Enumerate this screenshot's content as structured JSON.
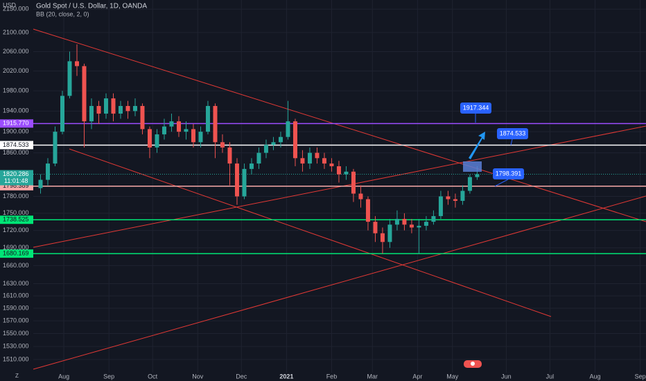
{
  "header": {
    "title": "Gold Spot / U.S. Dollar, 1D, OANDA",
    "indicator": "BB (20, close, 2, 0)",
    "currency": "USD",
    "corner": "Z"
  },
  "chart_data": {
    "type": "candlestick",
    "log_scale": true,
    "grid": true,
    "up_color": "#26a69a",
    "down_color": "#ef5350",
    "ylim": [
      1490,
      2170
    ],
    "yticks": [
      {
        "value": 2150,
        "label": "2150.000"
      },
      {
        "value": 2100,
        "label": "2100.000"
      },
      {
        "value": 2060,
        "label": "2060.000"
      },
      {
        "value": 2020,
        "label": "2020.000"
      },
      {
        "value": 1980,
        "label": "1980.000"
      },
      {
        "value": 1940,
        "label": "1940.000"
      },
      {
        "value": 1900,
        "label": "1900.000"
      },
      {
        "value": 1860,
        "label": "1860.000"
      },
      {
        "value": 1780,
        "label": "1780.000"
      },
      {
        "value": 1750,
        "label": "1750.000"
      },
      {
        "value": 1720,
        "label": "1720.000"
      },
      {
        "value": 1690,
        "label": "1690.000"
      },
      {
        "value": 1660,
        "label": "1660.000"
      },
      {
        "value": 1630,
        "label": "1630.000"
      },
      {
        "value": 1610,
        "label": "1610.000"
      },
      {
        "value": 1590,
        "label": "1590.000"
      },
      {
        "value": 1570,
        "label": "1570.000"
      },
      {
        "value": 1550,
        "label": "1550.000"
      },
      {
        "value": 1530,
        "label": "1530.000"
      },
      {
        "value": 1510,
        "label": "1510.000"
      }
    ],
    "xlim": [
      10,
      431
    ],
    "xticks": [
      {
        "value": 31,
        "label": "Aug"
      },
      {
        "value": 62,
        "label": "Sep"
      },
      {
        "value": 92,
        "label": "Oct"
      },
      {
        "value": 123,
        "label": "Nov"
      },
      {
        "value": 153,
        "label": "Dec"
      },
      {
        "value": 184,
        "label": "2021"
      },
      {
        "value": 215,
        "label": "Feb"
      },
      {
        "value": 243,
        "label": "Mar"
      },
      {
        "value": 274,
        "label": "Apr"
      },
      {
        "value": 298,
        "label": "May"
      },
      {
        "value": 335,
        "label": "Jun"
      },
      {
        "value": 365,
        "label": "Jul"
      },
      {
        "value": 396,
        "label": "Aug"
      },
      {
        "value": 427,
        "label": "Sep"
      }
    ],
    "x": [
      15,
      20,
      25,
      30,
      35,
      40,
      45,
      50,
      55,
      60,
      65,
      70,
      75,
      80,
      85,
      90,
      95,
      100,
      105,
      110,
      115,
      120,
      125,
      130,
      135,
      140,
      145,
      150,
      155,
      160,
      165,
      170,
      175,
      180,
      185,
      190,
      195,
      200,
      205,
      210,
      215,
      220,
      225,
      230,
      235,
      240,
      245,
      250,
      255,
      260,
      265,
      270,
      275,
      280,
      285,
      290,
      295,
      300,
      305,
      310,
      315
    ],
    "open": [
      1795,
      1810,
      1840,
      1900,
      1970,
      2040,
      2030,
      1920,
      1950,
      1935,
      1965,
      1935,
      1950,
      1940,
      1950,
      1905,
      1870,
      1895,
      1910,
      1920,
      1900,
      1905,
      1880,
      1900,
      1950,
      1880,
      1870,
      1840,
      1780,
      1830,
      1840,
      1860,
      1875,
      1880,
      1890,
      1920,
      1850,
      1840,
      1860,
      1850,
      1840,
      1835,
      1820,
      1825,
      1785,
      1775,
      1735,
      1715,
      1700,
      1730,
      1740,
      1730,
      1725,
      1728,
      1735,
      1745,
      1780,
      1775,
      1772,
      1790,
      1815
    ],
    "high": [
      1820,
      1850,
      1910,
      1980,
      2060,
      2075,
      2035,
      1965,
      1960,
      1975,
      1975,
      1960,
      1960,
      1965,
      1955,
      1910,
      1905,
      1925,
      1935,
      1930,
      1920,
      1915,
      1910,
      1960,
      1955,
      1895,
      1880,
      1850,
      1840,
      1850,
      1870,
      1885,
      1890,
      1900,
      1960,
      1925,
      1865,
      1870,
      1870,
      1860,
      1850,
      1845,
      1835,
      1830,
      1800,
      1780,
      1745,
      1725,
      1740,
      1755,
      1750,
      1740,
      1740,
      1745,
      1755,
      1790,
      1790,
      1785,
      1800,
      1820,
      1835
    ],
    "low": [
      1785,
      1800,
      1835,
      1895,
      1965,
      2010,
      1870,
      1905,
      1915,
      1925,
      1920,
      1925,
      1925,
      1930,
      1895,
      1850,
      1860,
      1885,
      1900,
      1890,
      1885,
      1870,
      1870,
      1895,
      1850,
      1860,
      1800,
      1765,
      1775,
      1820,
      1830,
      1850,
      1865,
      1870,
      1885,
      1835,
      1825,
      1830,
      1840,
      1830,
      1825,
      1805,
      1810,
      1770,
      1760,
      1720,
      1700,
      1680,
      1690,
      1720,
      1720,
      1715,
      1680,
      1720,
      1730,
      1740,
      1765,
      1760,
      1765,
      1785,
      1810
    ],
    "close": [
      1810,
      1840,
      1900,
      1970,
      2040,
      2030,
      1920,
      1950,
      1935,
      1965,
      1935,
      1950,
      1940,
      1950,
      1905,
      1870,
      1895,
      1910,
      1920,
      1900,
      1905,
      1880,
      1900,
      1950,
      1880,
      1870,
      1840,
      1780,
      1830,
      1840,
      1860,
      1875,
      1880,
      1890,
      1920,
      1850,
      1840,
      1860,
      1850,
      1840,
      1835,
      1820,
      1825,
      1785,
      1775,
      1735,
      1715,
      1700,
      1730,
      1740,
      1730,
      1725,
      1728,
      1735,
      1745,
      1780,
      1775,
      1772,
      1790,
      1815,
      1820.286
    ],
    "price_tags": [
      {
        "value": 1915.77,
        "label": "1915.770",
        "color": "#9c4dff",
        "text_color": "#ffffff"
      },
      {
        "value": 1874.533,
        "label": "1874.533",
        "color": "#ffffff",
        "text_color": "#131722"
      },
      {
        "value": 1798.389,
        "label": "1798.389",
        "color": "#f7a9a8",
        "text_color": "#131722"
      },
      {
        "value": 1738.525,
        "label": "1738.525",
        "color": "#00e676",
        "text_color": "#131722"
      },
      {
        "value": 1680.169,
        "label": "1680.169",
        "color": "#00e676",
        "text_color": "#131722"
      }
    ],
    "last_price": {
      "value": 1820.286,
      "label": "1820.286",
      "countdown": "11:01:48",
      "color": "#26a69a"
    },
    "callouts": [
      {
        "value": 1917.344,
        "label": "1917.344"
      },
      {
        "value": 1874.533,
        "label": "1874.533"
      },
      {
        "value": 1798.391,
        "label": "1798.391"
      }
    ]
  }
}
